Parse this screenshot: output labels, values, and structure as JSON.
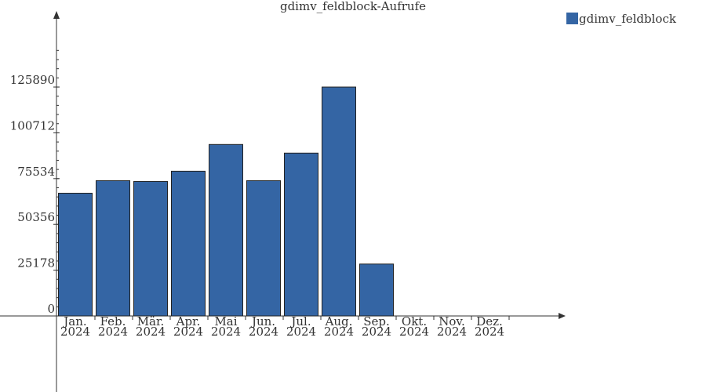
{
  "chart_data": {
    "type": "bar",
    "title": "gdimv_feldblock-Aufrufe",
    "categories": [
      [
        "Jan.",
        "2024"
      ],
      [
        "Feb.",
        "2024"
      ],
      [
        "Mär.",
        "2024"
      ],
      [
        "Apr.",
        "2024"
      ],
      [
        "Mai",
        "2024"
      ],
      [
        "Jun.",
        "2024"
      ],
      [
        "Jul.",
        "2024"
      ],
      [
        "Aug.",
        "2024"
      ],
      [
        "Sep.",
        "2024"
      ],
      [
        "Okt.",
        "2024"
      ],
      [
        "Nov.",
        "2024"
      ],
      [
        "Dez.",
        "2024"
      ]
    ],
    "series": [
      {
        "name": "gdimv_feldblock",
        "color": "#3465a4",
        "values": [
          67500,
          74400,
          73970,
          79600,
          94300,
          74400,
          89560,
          125890,
          28550,
          0,
          0,
          0
        ]
      }
    ],
    "ylim": [
      0,
      166000
    ],
    "yticks": [
      0,
      25178,
      50356,
      75534,
      100712,
      125890
    ],
    "legend": "top-right"
  }
}
